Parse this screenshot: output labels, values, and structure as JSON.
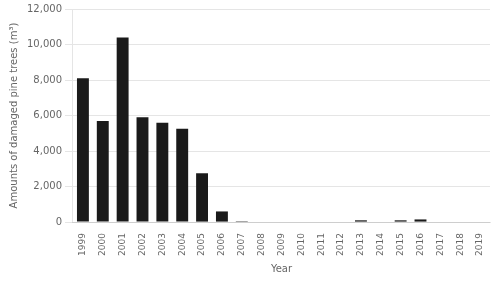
{
  "chart_data": {
    "type": "bar",
    "xlabel": "Year",
    "ylabel": "Amounts of damaged pine trees (m³)",
    "categories": [
      "1999",
      "2000",
      "2001",
      "2002",
      "2003",
      "2004",
      "2005",
      "2006",
      "2007",
      "2008",
      "2009",
      "2010",
      "2011",
      "2012",
      "2013",
      "2014",
      "2015",
      "2016",
      "2017",
      "2018",
      "2019"
    ],
    "values": [
      8100,
      5700,
      10400,
      5900,
      5600,
      5250,
      2750,
      600,
      50,
      0,
      0,
      0,
      0,
      0,
      100,
      0,
      100,
      150,
      0,
      0,
      0
    ],
    "color": "#1a1a1a",
    "ylim": [
      0,
      12000
    ],
    "yticks": [
      0,
      {
        "value": 2000,
        "label": "2,000"
      },
      {
        "value": 4000,
        "label": "4,000"
      },
      {
        "value": 6000,
        "label": "6,000"
      },
      {
        "value": 8000,
        "label": "8,000"
      },
      {
        "value": 10000,
        "label": "10,000"
      },
      {
        "value": 12000,
        "label": "12,000"
      }
    ],
    "grid": true
  }
}
